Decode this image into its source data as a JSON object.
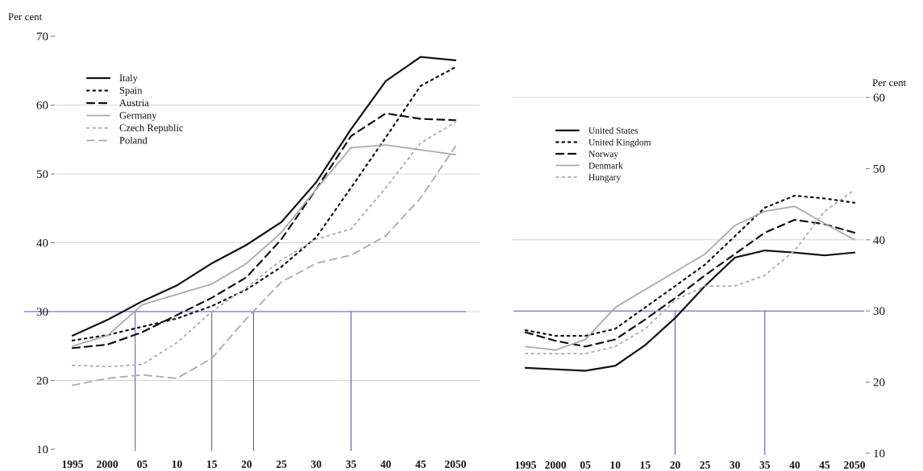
{
  "chart_data": [
    {
      "type": "line",
      "ylabel": "Per cent",
      "ylim": [
        10,
        70
      ],
      "yticks": [
        10,
        20,
        30,
        40,
        50,
        60,
        70
      ],
      "x": [
        1995,
        2000,
        2005,
        2010,
        2015,
        2020,
        2025,
        2030,
        2035,
        2040,
        2045,
        2050
      ],
      "xtick_labels": [
        "1995",
        "2000",
        "05",
        "10",
        "15",
        "20",
        "25",
        "30",
        "35",
        "40",
        "45",
        "2050"
      ],
      "grid": "horizontal at 20, 30, 40, 50, 60",
      "legend_position": "top-left",
      "reference_lines": {
        "horizontal_at_y": 30,
        "vertical_at_x": [
          2004,
          2015,
          2021,
          2035
        ],
        "color": "#4a4ad0"
      },
      "series": [
        {
          "name": "Italy",
          "color": "#111111",
          "style": "solid",
          "values": [
            26.5,
            28.8,
            31.5,
            33.8,
            37,
            39.7,
            43,
            48.8,
            56.5,
            63.5,
            67,
            66.5
          ]
        },
        {
          "name": "Spain",
          "color": "#111111",
          "style": "dotted",
          "values": [
            25.8,
            26.6,
            27.8,
            29,
            30.8,
            33.2,
            36.5,
            40.8,
            48,
            55.3,
            62.8,
            65.5
          ]
        },
        {
          "name": "Austria",
          "color": "#111111",
          "style": "dashed",
          "values": [
            24.7,
            25.2,
            27,
            29.5,
            32,
            35,
            40.5,
            47.8,
            55.5,
            58.8,
            58,
            57.8
          ]
        },
        {
          "name": "Germany",
          "color": "#aaaaaa",
          "style": "solid",
          "values": [
            25,
            26.5,
            31,
            32.5,
            34,
            37,
            41.5,
            47.8,
            53.8,
            54.2,
            53.5,
            52.8
          ]
        },
        {
          "name": "Czech Republic",
          "color": "#aaaaaa",
          "style": "dotted",
          "values": [
            22.2,
            22,
            22.3,
            25.5,
            30,
            33.5,
            37.5,
            40.5,
            42,
            48,
            54.5,
            57.5
          ]
        },
        {
          "name": "Poland",
          "color": "#aaaaaa",
          "style": "dashed",
          "values": [
            19.3,
            20.3,
            20.8,
            20.3,
            23.2,
            29,
            34.3,
            37,
            38.2,
            41,
            46.5,
            54
          ]
        }
      ]
    },
    {
      "type": "line",
      "ylabel": "Per cent",
      "ylim": [
        10,
        60
      ],
      "yticks": [
        10,
        20,
        30,
        40,
        50,
        60
      ],
      "x": [
        1995,
        2000,
        2005,
        2010,
        2015,
        2020,
        2025,
        2030,
        2035,
        2040,
        2045,
        2050
      ],
      "xtick_labels": [
        "1995",
        "2000",
        "05",
        "10",
        "15",
        "20",
        "25",
        "30",
        "35",
        "40",
        "45",
        "2050"
      ],
      "grid": "horizontal at 40, 60",
      "legend_position": "top-left",
      "reference_lines": {
        "horizontal_at_y": 30,
        "vertical_at_x": [
          2020,
          2035
        ],
        "color": "#4a4ad0"
      },
      "series": [
        {
          "name": "United States",
          "color": "#111111",
          "style": "solid",
          "values": [
            22,
            21.8,
            21.6,
            22.3,
            25.2,
            29,
            33.5,
            37.5,
            38.5,
            38.2,
            37.8,
            38.2
          ]
        },
        {
          "name": "United Kingdom",
          "color": "#111111",
          "style": "dotted",
          "values": [
            27.3,
            26.5,
            26.5,
            27.5,
            30.5,
            33.5,
            36.5,
            40.5,
            44.5,
            46.2,
            45.8,
            45.2
          ]
        },
        {
          "name": "Norway",
          "color": "#111111",
          "style": "dashed",
          "values": [
            27,
            25.8,
            25,
            26,
            28.8,
            31.8,
            35,
            38,
            41,
            42.8,
            42.2,
            41
          ]
        },
        {
          "name": "Denmark",
          "color": "#aaaaaa",
          "style": "solid",
          "values": [
            25,
            24.5,
            26,
            30.5,
            33,
            35.5,
            38,
            42,
            44,
            44.7,
            42.3,
            40
          ]
        },
        {
          "name": "Hungary",
          "color": "#aaaaaa",
          "style": "dotted",
          "values": [
            24,
            24,
            24,
            25,
            27.5,
            31.5,
            33.5,
            33.5,
            35,
            38.5,
            44,
            47
          ]
        }
      ]
    }
  ]
}
